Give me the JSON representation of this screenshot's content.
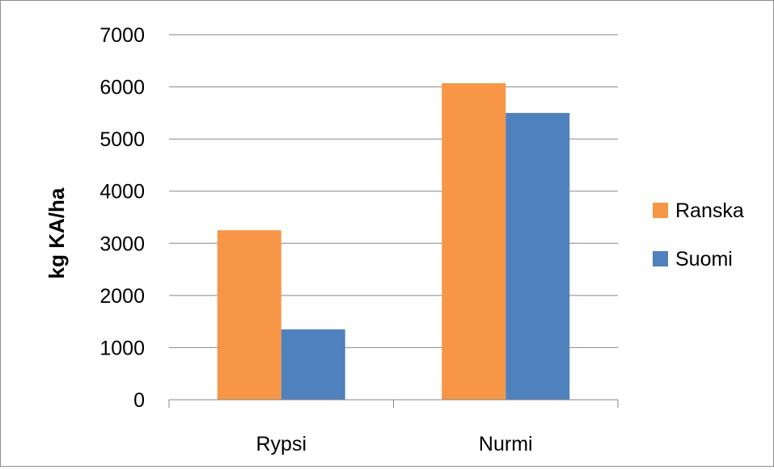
{
  "chart_data": {
    "type": "bar",
    "title": "",
    "xlabel": "",
    "ylabel": "kg KA/ha",
    "categories": [
      "Rypsi",
      "Nurmi"
    ],
    "series": [
      {
        "name": "Ranska",
        "color": "#F79646",
        "values": [
          3250,
          6070
        ]
      },
      {
        "name": "Suomi",
        "color": "#4F81BD",
        "values": [
          1350,
          5500
        ]
      }
    ],
    "ylim": [
      0,
      7000
    ],
    "yticks": [
      "0",
      "1000",
      "2000",
      "3000",
      "4000",
      "5000",
      "6000",
      "7000"
    ],
    "grid": true,
    "legend": "right"
  }
}
